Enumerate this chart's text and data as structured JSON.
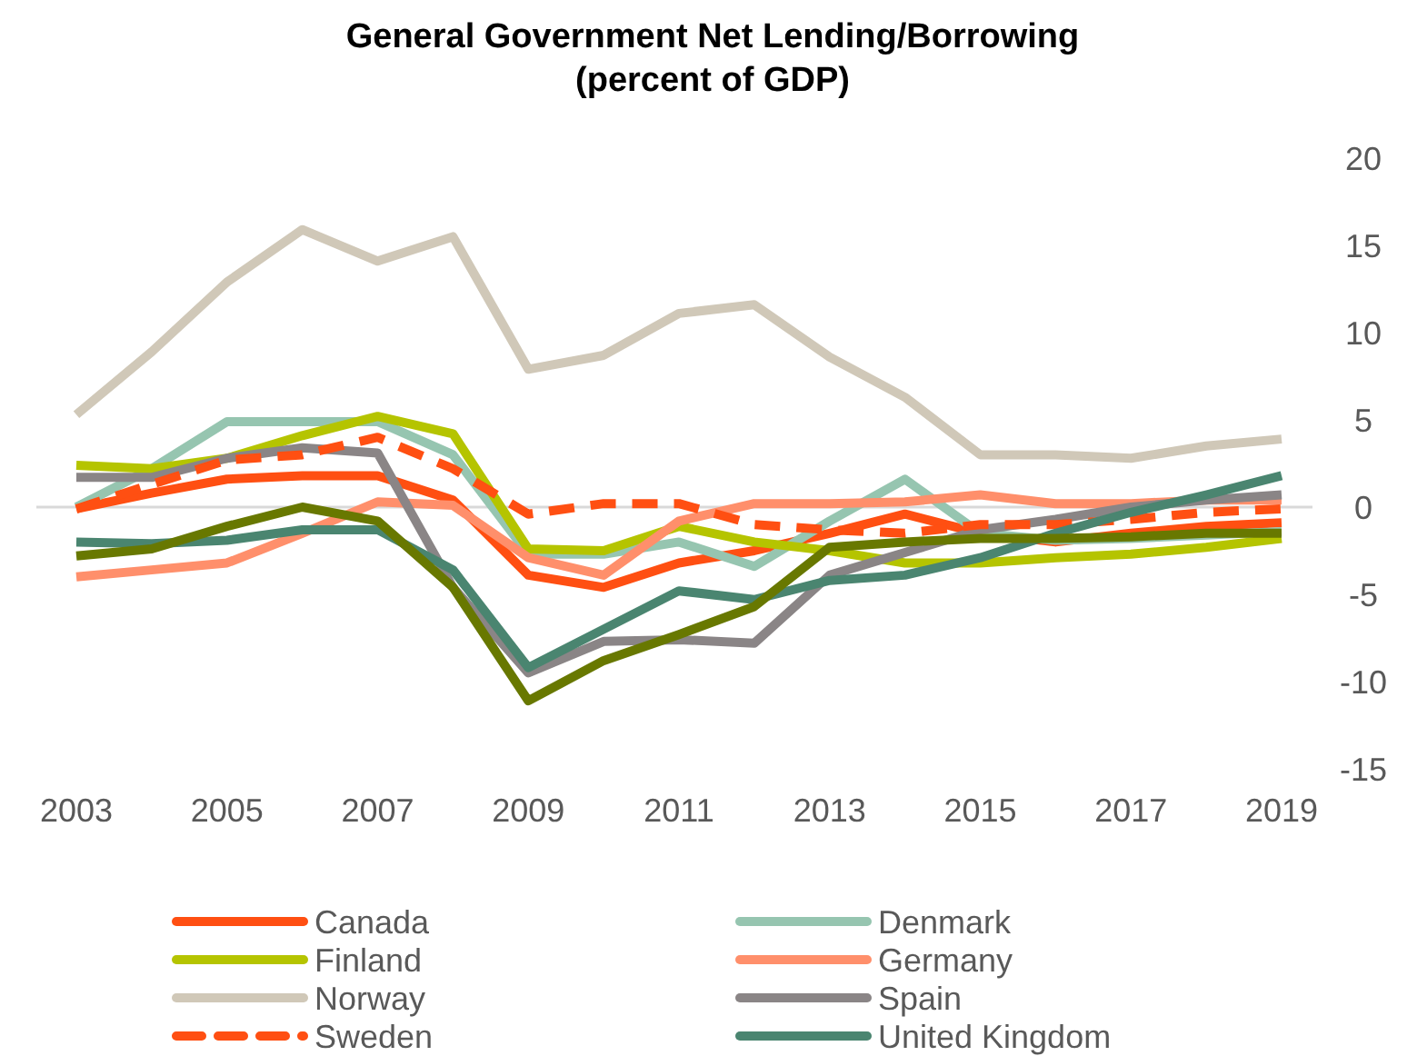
{
  "chart_data": {
    "type": "line",
    "title": "General Government Net Lending/Borrowing\n(percent of GDP)",
    "x": [
      2003,
      2004,
      2005,
      2006,
      2007,
      2008,
      2009,
      2010,
      2011,
      2012,
      2013,
      2014,
      2015,
      2016,
      2017,
      2018,
      2019
    ],
    "xlim": [
      2003,
      2019
    ],
    "xticks": [
      2003,
      2005,
      2007,
      2009,
      2011,
      2013,
      2015,
      2017,
      2019
    ],
    "ylim": [
      -15,
      20
    ],
    "yticks": [
      -15,
      -10,
      -5,
      0,
      5,
      10,
      15,
      20
    ],
    "ref_lines": [
      {
        "axis": "y",
        "value": 0,
        "color": "#d9d9d9"
      }
    ],
    "legend": "bottom",
    "marker": "none",
    "series": [
      {
        "name": "Canada",
        "color": "#ff4f12",
        "values": [
          -0.1,
          0.8,
          1.6,
          1.8,
          1.8,
          0.4,
          -3.9,
          -4.6,
          -3.2,
          -2.5,
          -1.5,
          -0.4,
          -1.5,
          -2.0,
          -1.5,
          -1.1,
          -0.9
        ]
      },
      {
        "name": "Denmark",
        "color": "#96c5b0",
        "values": [
          0,
          2.2,
          4.9,
          4.9,
          4.9,
          3.0,
          -2.7,
          -2.7,
          -2.0,
          -3.4,
          -0.8,
          1.6,
          -1.5,
          -1.9,
          -1.8,
          -1.6,
          -1.4
        ]
      },
      {
        "name": "Finland",
        "color": "#b5c400",
        "values": [
          2.4,
          2.2,
          2.8,
          4.1,
          5.2,
          4.2,
          -2.4,
          -2.5,
          -1.1,
          -2.0,
          -2.5,
          -3.2,
          -3.2,
          -2.9,
          -2.7,
          -2.3,
          -1.8
        ]
      },
      {
        "name": "Germany",
        "color": "#ff8f6b",
        "values": [
          -4.0,
          -3.6,
          -3.2,
          -1.5,
          0.3,
          0.1,
          -2.9,
          -3.9,
          -0.8,
          0.2,
          0.2,
          0.3,
          0.7,
          0.2,
          0.2,
          0.4,
          0.4
        ]
      },
      {
        "name": "Norway",
        "color": "#d0c8b8",
        "values": [
          5.3,
          8.9,
          12.9,
          15.9,
          14.1,
          15.5,
          7.9,
          8.7,
          11.1,
          11.6,
          8.6,
          6.3,
          3.0,
          3.0,
          2.8,
          3.5,
          3.9
        ]
      },
      {
        "name": "Spain",
        "color": "#8a8586",
        "values": [
          1.7,
          1.7,
          2.8,
          3.4,
          3.1,
          -4.6,
          -9.5,
          -7.7,
          -7.6,
          -7.8,
          -3.9,
          -2.6,
          -1.3,
          -0.7,
          0,
          0.4,
          0.7
        ]
      },
      {
        "name": "Sweden",
        "color": "#ff4f12",
        "line_style": "dashed",
        "values": [
          -0.1,
          1.3,
          2.7,
          3.0,
          4.0,
          2.2,
          -0.4,
          0.2,
          0.2,
          -1.0,
          -1.3,
          -1.5,
          -1.0,
          -1.0,
          -0.7,
          -0.3,
          -0.1
        ]
      },
      {
        "name": "United Kingdom",
        "color": "#4a8570",
        "values": [
          -2.0,
          -2.1,
          -1.9,
          -1.3,
          -1.3,
          -3.6,
          -9.2,
          -7.0,
          -4.8,
          -5.3,
          -4.2,
          -3.9,
          -2.9,
          -1.5,
          -0.3,
          0.7,
          1.8
        ]
      },
      {
        "color": "#687800",
        "values": [
          -2.8,
          -2.4,
          -1.1,
          0,
          -0.8,
          -4.6,
          -11.1,
          -8.8,
          -7.3,
          -5.7,
          -2.3,
          -2.0,
          -1.8,
          -1.8,
          -1.7,
          -1.5,
          -1.5
        ]
      }
    ]
  }
}
